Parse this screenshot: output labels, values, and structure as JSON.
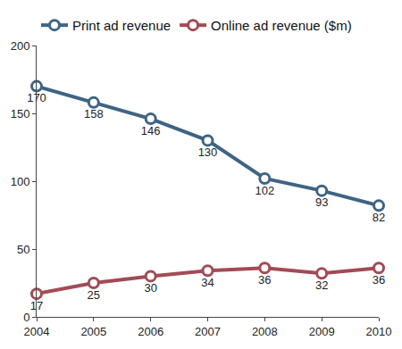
{
  "chart_data": {
    "type": "line",
    "x": [
      2004,
      2005,
      2006,
      2007,
      2008,
      2009,
      2010
    ],
    "series": [
      {
        "name": "Print ad revenue",
        "color": "#3f6483",
        "marker": "circle",
        "line_style": "solid",
        "values": [
          170,
          158,
          146,
          130,
          102,
          93,
          82
        ]
      },
      {
        "name": "Online ad revenue ($m)",
        "color": "#a24b55",
        "marker": "circle",
        "line_style": "solid",
        "values": [
          17,
          25,
          30,
          34,
          36,
          32,
          36
        ]
      }
    ],
    "xlim": [
      2004,
      2010
    ],
    "xticks": [
      2004,
      2005,
      2006,
      2007,
      2008,
      2009,
      2010
    ],
    "ylim": [
      0,
      200
    ],
    "yticks": [
      0,
      50,
      100,
      150,
      200
    ],
    "grid": false,
    "legend": "top left",
    "data_labels": true
  }
}
